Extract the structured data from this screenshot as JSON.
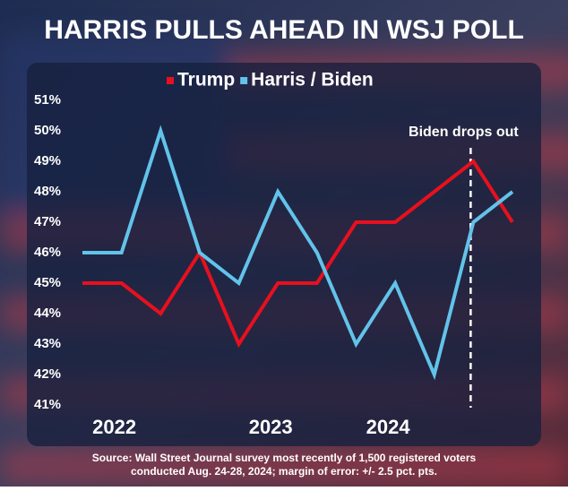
{
  "chart_data": {
    "type": "line",
    "title": "HARRIS PULLS AHEAD IN WSJ POLL",
    "categories": [
      null,
      "2022",
      null,
      null,
      null,
      "2023",
      null,
      null,
      "2024",
      null,
      null,
      null
    ],
    "series": [
      {
        "name": "Trump",
        "color": "#e8101e",
        "values": [
          45,
          45,
          44,
          46,
          43,
          45,
          45,
          47,
          47,
          48,
          49,
          47
        ]
      },
      {
        "name": "Harris / Biden",
        "color": "#62c3ea",
        "values": [
          46,
          46,
          50,
          46,
          45,
          48,
          46,
          43,
          45,
          42,
          47,
          48
        ]
      }
    ],
    "ylim": [
      41,
      51
    ],
    "yticks": [
      {
        "value": 41,
        "label": "41%"
      },
      {
        "value": 42,
        "label": "42%"
      },
      {
        "value": 43,
        "label": "43%"
      },
      {
        "value": 44,
        "label": "44%"
      },
      {
        "value": 45,
        "label": "45%"
      },
      {
        "value": 46,
        "label": "46%"
      },
      {
        "value": 47,
        "label": "47%"
      },
      {
        "value": 48,
        "label": "48%"
      },
      {
        "value": 49,
        "label": "49%"
      },
      {
        "value": 50,
        "label": "50%"
      },
      {
        "value": 51,
        "label": "51%"
      }
    ],
    "grid": false,
    "annotation": "Biden drops out",
    "source": [
      "Source: Wall Street Journal survey most recently of 1,500 registered voters",
      "conducted Aug. 24-28, 2024; margin of error: +/- 2.5 pct. pts."
    ]
  }
}
